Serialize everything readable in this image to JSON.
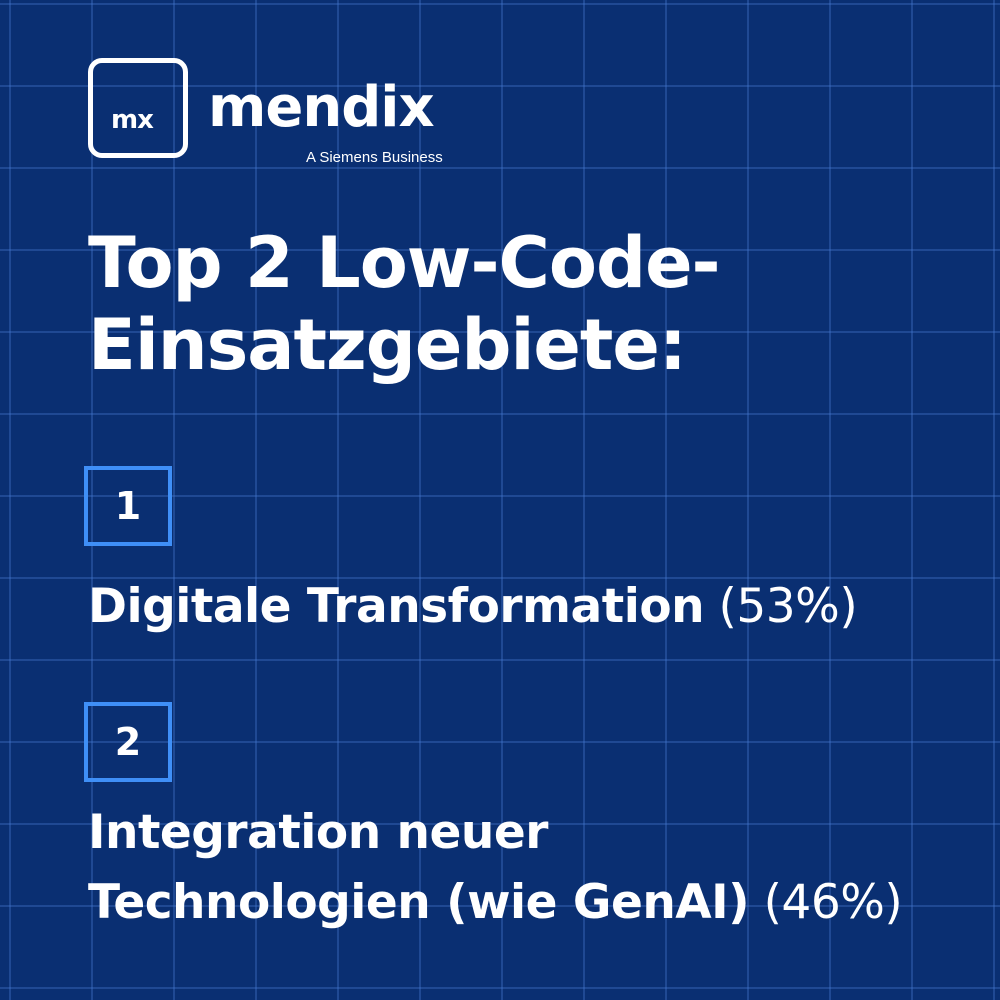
{
  "logo": {
    "mark": "mx",
    "wordmark": "mendix",
    "tagline": "A Siemens Business"
  },
  "headline": {
    "line1": "Top 2 Low-Code-",
    "line2": "Einsatzgebiete:"
  },
  "items": [
    {
      "number": "1",
      "label": "Digitale Transformation",
      "percent": "(53%)"
    },
    {
      "number": "2",
      "label_line1": "Integration neuer",
      "label_line2": "Technologien (wie GenAI)",
      "percent": "(46%)"
    }
  ],
  "colors": {
    "background": "#0a2f72",
    "grid": "#4678d2",
    "accent": "#3f8ff7",
    "text": "#ffffff"
  }
}
